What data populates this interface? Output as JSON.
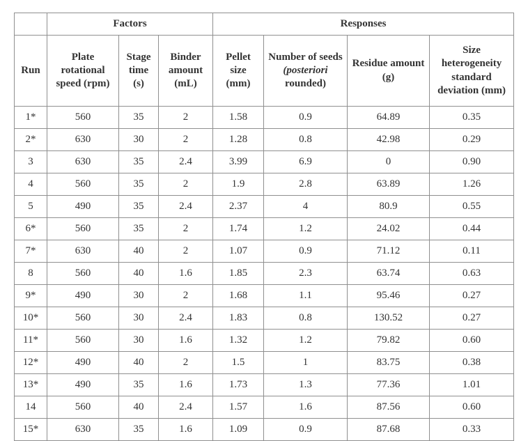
{
  "colors": {
    "border": "#8f8f8f",
    "text": "#333333",
    "background": "#ffffff"
  },
  "table": {
    "group_headers": [
      {
        "label": "Factors",
        "colspan": 3
      },
      {
        "label": "Responses",
        "colspan": 4
      }
    ],
    "columns": [
      "Run",
      "Plate rotational speed (rpm)",
      "Stage time (s)",
      "Binder amount (mL)",
      "Pellet size (mm)",
      {
        "pre": "Number of seeds ",
        "italic": "(posteriori",
        "post": " rounded)"
      },
      "Residue amount (g)",
      "Size heterogeneity standard deviation (mm)"
    ],
    "rows": [
      [
        "1*",
        "560",
        "35",
        "2",
        "1.58",
        "0.9",
        "64.89",
        "0.35"
      ],
      [
        "2*",
        "630",
        "30",
        "2",
        "1.28",
        "0.8",
        "42.98",
        "0.29"
      ],
      [
        "3",
        "630",
        "35",
        "2.4",
        "3.99",
        "6.9",
        "0",
        "0.90"
      ],
      [
        "4",
        "560",
        "35",
        "2",
        "1.9",
        "2.8",
        "63.89",
        "1.26"
      ],
      [
        "5",
        "490",
        "35",
        "2.4",
        "2.37",
        "4",
        "80.9",
        "0.55"
      ],
      [
        "6*",
        "560",
        "35",
        "2",
        "1.74",
        "1.2",
        "24.02",
        "0.44"
      ],
      [
        "7*",
        "630",
        "40",
        "2",
        "1.07",
        "0.9",
        "71.12",
        "0.11"
      ],
      [
        "8",
        "560",
        "40",
        "1.6",
        "1.85",
        "2.3",
        "63.74",
        "0.63"
      ],
      [
        "9*",
        "490",
        "30",
        "2",
        "1.68",
        "1.1",
        "95.46",
        "0.27"
      ],
      [
        "10*",
        "560",
        "30",
        "2.4",
        "1.83",
        "0.8",
        "130.52",
        "0.27"
      ],
      [
        "11*",
        "560",
        "30",
        "1.6",
        "1.32",
        "1.2",
        "79.82",
        "0.60"
      ],
      [
        "12*",
        "490",
        "40",
        "2",
        "1.5",
        "1",
        "83.75",
        "0.38"
      ],
      [
        "13*",
        "490",
        "35",
        "1.6",
        "1.73",
        "1.3",
        "77.36",
        "1.01"
      ],
      [
        "14",
        "560",
        "40",
        "2.4",
        "1.57",
        "1.6",
        "87.56",
        "0.60"
      ],
      [
        "15*",
        "630",
        "35",
        "1.6",
        "1.09",
        "0.9",
        "87.68",
        "0.33"
      ]
    ]
  }
}
